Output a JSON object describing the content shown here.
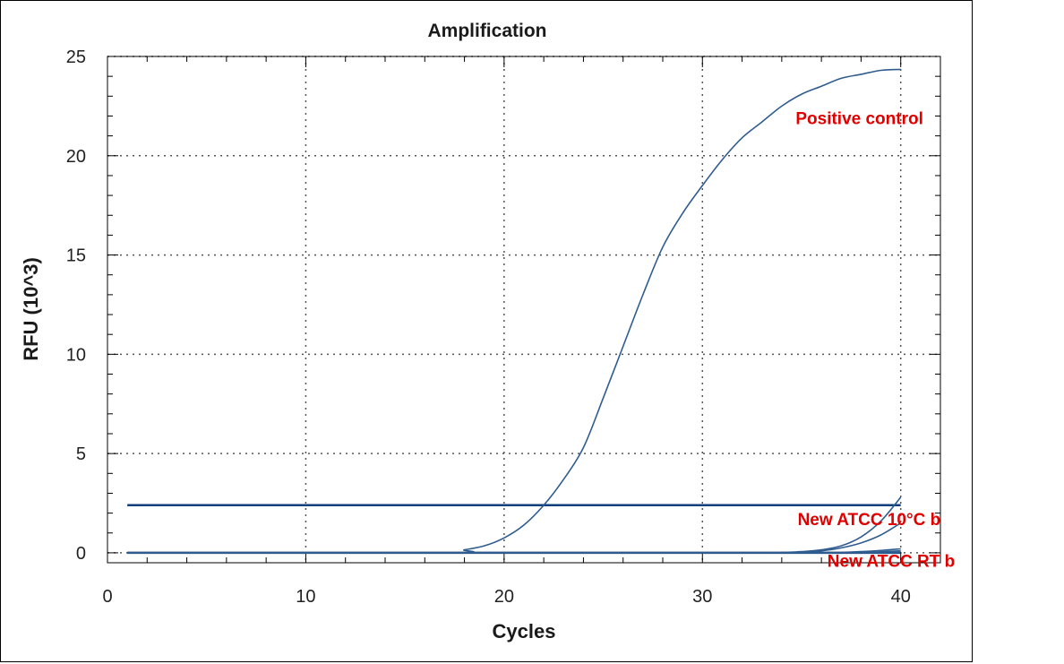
{
  "chart_data": {
    "type": "line",
    "title": "Amplification",
    "xlabel": "Cycles",
    "ylabel": "RFU (10^3)",
    "xlim": [
      0,
      42
    ],
    "ylim": [
      -0.5,
      25
    ],
    "x_ticks": [
      0,
      10,
      20,
      30,
      40
    ],
    "y_ticks": [
      0,
      5,
      10,
      15,
      20,
      25
    ],
    "grid": true,
    "threshold": 2.4,
    "series": [
      {
        "name": "Positive control",
        "x": [
          1,
          17,
          18,
          19,
          20,
          21,
          22,
          23,
          24,
          25,
          26,
          27,
          28,
          29,
          30,
          31,
          32,
          33,
          34,
          35,
          36,
          37,
          38,
          39,
          40
        ],
        "values": [
          0,
          0.0,
          0.15,
          0.35,
          0.75,
          1.4,
          2.4,
          3.7,
          5.3,
          7.8,
          10.4,
          13.0,
          15.4,
          17.1,
          18.5,
          19.8,
          20.9,
          21.7,
          22.5,
          23.1,
          23.5,
          23.9,
          24.1,
          24.3,
          24.35
        ]
      },
      {
        "name": "New ATCC 10°C b",
        "x": [
          1,
          33,
          34,
          35,
          36,
          37,
          38,
          39,
          40
        ],
        "values": [
          0,
          0,
          0.02,
          0.06,
          0.15,
          0.35,
          0.8,
          1.6,
          2.8
        ]
      },
      {
        "name": "",
        "x": [
          1,
          34,
          35,
          36,
          37,
          38,
          39,
          40
        ],
        "values": [
          0,
          0,
          0.03,
          0.1,
          0.25,
          0.5,
          0.9,
          1.5
        ]
      },
      {
        "name": "New ATCC RT b",
        "x": [
          1,
          36,
          37,
          38,
          39,
          40
        ],
        "values": [
          0,
          0,
          0.02,
          0.06,
          0.12,
          0.2
        ]
      },
      {
        "name": "",
        "x": [
          1,
          37,
          38,
          39,
          40
        ],
        "values": [
          0,
          0,
          0.02,
          0.05,
          0.1
        ]
      }
    ],
    "annotations": [
      {
        "text": "Positive control",
        "x": 34.7,
        "y": 21.6
      },
      {
        "text": "New ATCC 10°C b",
        "x": 34.8,
        "y": 1.4
      },
      {
        "text": "New ATCC RT b",
        "x": 36.3,
        "y": -0.7
      }
    ],
    "colors": {
      "curve": "#2f5c8f",
      "threshold": "#0d3f7a",
      "annotation": "#e00000",
      "grid": "#555555",
      "axis": "#000000"
    }
  }
}
